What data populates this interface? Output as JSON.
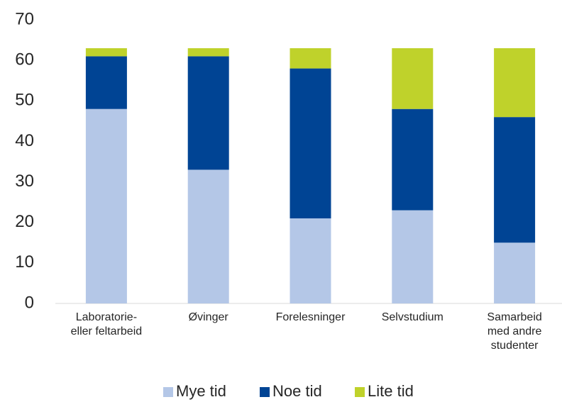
{
  "chart_data": {
    "type": "stacked_bar",
    "categories": [
      "Laboratorie-\neller feltarbeid",
      "Øvinger",
      "Forelesninger",
      "Selvstudium",
      "Samarbeid\nmed andre\nstudenter"
    ],
    "series": [
      {
        "name": "Mye tid",
        "color": "#b4c7e7",
        "values": [
          48,
          33,
          21,
          23,
          15
        ]
      },
      {
        "name": "Noe tid",
        "color": "#004494",
        "values": [
          13,
          28,
          37,
          25,
          31
        ]
      },
      {
        "name": "Lite tid",
        "color": "#bfd22b",
        "values": [
          2,
          2,
          5,
          15,
          17
        ]
      }
    ],
    "ylim": [
      0,
      70
    ],
    "yticks": [
      0,
      10,
      20,
      30,
      40,
      50,
      60,
      70
    ],
    "grid": false,
    "legend": "bottom"
  }
}
